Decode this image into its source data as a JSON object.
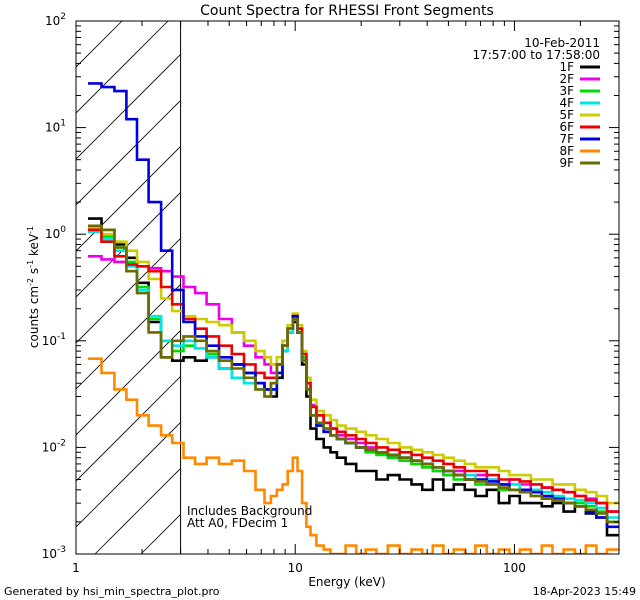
{
  "chart_data": {
    "type": "line",
    "title": "Count Spectra for RHESSI Front Segments",
    "xlabel": "Energy (keV)",
    "ylabel": "counts cm-2 s-1 keV-1",
    "xscale": "log",
    "yscale": "log",
    "xlim": [
      1,
      300
    ],
    "ylim": [
      0.001,
      100
    ],
    "x_ticks": [
      {
        "value": 1,
        "label": "1"
      },
      {
        "value": 10,
        "label": "10"
      },
      {
        "value": 100,
        "label": "100"
      }
    ],
    "y_ticks": [
      {
        "value": 0.001,
        "base": "10",
        "exp": "-3"
      },
      {
        "value": 0.01,
        "base": "10",
        "exp": "-2"
      },
      {
        "value": 0.1,
        "base": "10",
        "exp": "-1"
      },
      {
        "value": 1,
        "base": "10",
        "exp": "0"
      },
      {
        "value": 10,
        "base": "10",
        "exp": "1"
      },
      {
        "value": 100,
        "base": "10",
        "exp": "2"
      }
    ],
    "date": "10-Feb-2011",
    "time_range": "17:57:00 to 17:58:00",
    "hatched_region_max_keV": 3,
    "annotations": [
      "Includes Background",
      "Att A0, FDecim 1"
    ],
    "series": [
      {
        "name": "1F",
        "color": "#000000",
        "x": [
          1.22,
          1.4,
          1.6,
          1.8,
          2.0,
          2.3,
          2.6,
          2.9,
          3.3,
          3.7,
          4.2,
          4.8,
          5.5,
          6.2,
          7.0,
          7.5,
          8.0,
          8.5,
          9.0,
          9.5,
          10.0,
          10.5,
          11.0,
          11.5,
          12.0,
          13,
          14,
          15,
          16,
          18,
          20,
          22,
          25,
          28,
          32,
          36,
          40,
          45,
          50,
          56,
          63,
          70,
          80,
          90,
          100,
          112,
          126,
          141,
          158,
          178,
          200,
          224,
          250,
          280
        ],
        "y": [
          1.4,
          1.1,
          0.8,
          0.6,
          0.35,
          0.15,
          0.07,
          0.065,
          0.07,
          0.065,
          0.07,
          0.055,
          0.06,
          0.05,
          0.04,
          0.035,
          0.03,
          0.045,
          0.08,
          0.12,
          0.15,
          0.12,
          0.06,
          0.03,
          0.015,
          0.012,
          0.01,
          0.009,
          0.008,
          0.007,
          0.006,
          0.006,
          0.005,
          0.0055,
          0.005,
          0.0045,
          0.004,
          0.005,
          0.004,
          0.0045,
          0.004,
          0.0035,
          0.004,
          0.003,
          0.0035,
          0.003,
          0.003,
          0.0028,
          0.003,
          0.0025,
          0.0028,
          0.0024,
          0.0022,
          0.0015
        ]
      },
      {
        "name": "2F",
        "color": "#ee00ee",
        "x": [
          1.22,
          1.4,
          1.6,
          1.8,
          2.0,
          2.3,
          2.6,
          2.9,
          3.3,
          3.7,
          4.2,
          4.8,
          5.5,
          6.2,
          7.0,
          7.5,
          8.0,
          8.5,
          9.0,
          9.5,
          10.0,
          10.5,
          11.0,
          11.5,
          12.0,
          13,
          14,
          15,
          16,
          18,
          20,
          22,
          25,
          28,
          32,
          36,
          40,
          45,
          50,
          56,
          63,
          70,
          80,
          90,
          100,
          112,
          126,
          141,
          158,
          178,
          200,
          224,
          250,
          280
        ],
        "y": [
          0.62,
          0.58,
          0.55,
          0.52,
          0.5,
          0.48,
          0.45,
          0.4,
          0.32,
          0.28,
          0.22,
          0.16,
          0.12,
          0.09,
          0.07,
          0.06,
          0.05,
          0.06,
          0.09,
          0.12,
          0.16,
          0.12,
          0.07,
          0.04,
          0.025,
          0.02,
          0.017,
          0.015,
          0.013,
          0.012,
          0.011,
          0.01,
          0.009,
          0.008,
          0.0075,
          0.007,
          0.0065,
          0.006,
          0.0055,
          0.006,
          0.005,
          0.0055,
          0.005,
          0.0045,
          0.005,
          0.0045,
          0.004,
          0.0042,
          0.004,
          0.0038,
          0.0035,
          0.0033,
          0.003,
          0.0025
        ]
      },
      {
        "name": "3F",
        "color": "#00dd00",
        "x": [
          1.22,
          1.4,
          1.6,
          1.8,
          2.0,
          2.3,
          2.6,
          2.9,
          3.3,
          3.7,
          4.2,
          4.8,
          5.5,
          6.2,
          7.0,
          7.5,
          8.0,
          8.5,
          9.0,
          9.5,
          10.0,
          10.5,
          11.0,
          11.5,
          12.0,
          13,
          14,
          15,
          16,
          18,
          20,
          22,
          25,
          28,
          32,
          36,
          40,
          45,
          50,
          56,
          63,
          70,
          80,
          90,
          100,
          112,
          126,
          141,
          158,
          178,
          200,
          224,
          250,
          280
        ],
        "y": [
          1.1,
          0.95,
          0.75,
          0.55,
          0.32,
          0.16,
          0.1,
          0.08,
          0.09,
          0.085,
          0.075,
          0.065,
          0.06,
          0.05,
          0.04,
          0.035,
          0.04,
          0.06,
          0.09,
          0.13,
          0.17,
          0.13,
          0.07,
          0.035,
          0.02,
          0.017,
          0.015,
          0.013,
          0.012,
          0.011,
          0.01,
          0.009,
          0.0085,
          0.008,
          0.0075,
          0.007,
          0.0065,
          0.006,
          0.0055,
          0.005,
          0.005,
          0.0045,
          0.0045,
          0.004,
          0.004,
          0.0038,
          0.0035,
          0.0035,
          0.0032,
          0.003,
          0.003,
          0.0028,
          0.0025,
          0.002
        ]
      },
      {
        "name": "4F",
        "color": "#00e5e5",
        "x": [
          1.22,
          1.4,
          1.6,
          1.8,
          2.0,
          2.3,
          2.6,
          2.9,
          3.3,
          3.7,
          4.2,
          4.8,
          5.5,
          6.2,
          7.0,
          7.5,
          8.0,
          8.5,
          9.0,
          9.5,
          10.0,
          10.5,
          11.0,
          11.5,
          12.0,
          13,
          14,
          15,
          16,
          18,
          20,
          22,
          25,
          28,
          32,
          36,
          40,
          45,
          50,
          56,
          63,
          70,
          80,
          90,
          100,
          112,
          126,
          141,
          158,
          178,
          200,
          224,
          250,
          280
        ],
        "y": [
          1.05,
          0.9,
          0.7,
          0.5,
          0.3,
          0.17,
          0.1,
          0.09,
          0.1,
          0.085,
          0.07,
          0.055,
          0.045,
          0.04,
          0.035,
          0.03,
          0.035,
          0.05,
          0.08,
          0.12,
          0.16,
          0.12,
          0.065,
          0.035,
          0.02,
          0.016,
          0.014,
          0.013,
          0.012,
          0.011,
          0.01,
          0.0095,
          0.009,
          0.0085,
          0.008,
          0.0075,
          0.007,
          0.0065,
          0.006,
          0.0055,
          0.0055,
          0.005,
          0.005,
          0.0045,
          0.0045,
          0.004,
          0.004,
          0.0038,
          0.0035,
          0.0033,
          0.0032,
          0.003,
          0.0027,
          0.0022
        ]
      },
      {
        "name": "5F",
        "color": "#cccc00",
        "x": [
          1.22,
          1.4,
          1.6,
          1.8,
          2.0,
          2.3,
          2.6,
          2.9,
          3.3,
          3.7,
          4.2,
          4.8,
          5.5,
          6.2,
          7.0,
          7.5,
          8.0,
          8.5,
          9.0,
          9.5,
          10.0,
          10.5,
          11.0,
          11.5,
          12.0,
          13,
          14,
          15,
          16,
          18,
          20,
          22,
          25,
          28,
          32,
          36,
          40,
          45,
          50,
          56,
          63,
          70,
          80,
          90,
          100,
          112,
          126,
          141,
          158,
          178,
          200,
          224,
          250,
          280
        ],
        "y": [
          1.15,
          1.0,
          0.85,
          0.7,
          0.55,
          0.38,
          0.25,
          0.19,
          0.17,
          0.16,
          0.15,
          0.14,
          0.12,
          0.1,
          0.08,
          0.07,
          0.06,
          0.07,
          0.1,
          0.14,
          0.18,
          0.14,
          0.08,
          0.045,
          0.028,
          0.022,
          0.02,
          0.018,
          0.016,
          0.015,
          0.014,
          0.013,
          0.012,
          0.011,
          0.01,
          0.0095,
          0.009,
          0.0085,
          0.008,
          0.0075,
          0.007,
          0.0065,
          0.0065,
          0.006,
          0.0055,
          0.0055,
          0.005,
          0.005,
          0.0045,
          0.0045,
          0.004,
          0.0038,
          0.0035,
          0.003
        ]
      },
      {
        "name": "6F",
        "color": "#ee0000",
        "x": [
          1.22,
          1.4,
          1.6,
          1.8,
          2.0,
          2.3,
          2.6,
          2.9,
          3.3,
          3.7,
          4.2,
          4.8,
          5.5,
          6.2,
          7.0,
          7.5,
          8.0,
          8.5,
          9.0,
          9.5,
          10.0,
          10.5,
          11.0,
          11.5,
          12.0,
          13,
          14,
          15,
          16,
          18,
          20,
          22,
          25,
          28,
          32,
          36,
          40,
          45,
          50,
          56,
          63,
          70,
          80,
          90,
          100,
          112,
          126,
          141,
          158,
          178,
          200,
          224,
          250,
          280
        ],
        "y": [
          1.1,
          0.85,
          0.62,
          0.52,
          0.5,
          0.45,
          0.32,
          0.22,
          0.16,
          0.13,
          0.11,
          0.09,
          0.075,
          0.06,
          0.05,
          0.045,
          0.045,
          0.06,
          0.09,
          0.13,
          0.17,
          0.13,
          0.075,
          0.04,
          0.024,
          0.02,
          0.017,
          0.015,
          0.014,
          0.013,
          0.012,
          0.011,
          0.01,
          0.0095,
          0.009,
          0.0085,
          0.008,
          0.0075,
          0.007,
          0.0065,
          0.006,
          0.006,
          0.0055,
          0.005,
          0.005,
          0.0048,
          0.0045,
          0.0042,
          0.004,
          0.0038,
          0.0035,
          0.0032,
          0.003,
          0.0025
        ]
      },
      {
        "name": "7F",
        "color": "#0000dd",
        "x": [
          1.22,
          1.4,
          1.6,
          1.8,
          2.0,
          2.3,
          2.6,
          2.9,
          3.3,
          3.7,
          4.2,
          4.8,
          5.5,
          6.2,
          7.0,
          7.5,
          8.0,
          8.5,
          9.0,
          9.5,
          10.0,
          10.5,
          11.0,
          11.5,
          12.0,
          13,
          14,
          15,
          16,
          18,
          20,
          22,
          25,
          28,
          32,
          36,
          40,
          45,
          50,
          56,
          63,
          70,
          80,
          90,
          100,
          112,
          126,
          141,
          158,
          178,
          200,
          224,
          250,
          280
        ],
        "y": [
          26,
          24,
          22,
          12,
          5,
          2,
          0.7,
          0.3,
          0.15,
          0.11,
          0.09,
          0.07,
          0.06,
          0.05,
          0.04,
          0.035,
          0.035,
          0.05,
          0.09,
          0.13,
          0.17,
          0.12,
          0.065,
          0.035,
          0.02,
          0.016,
          0.014,
          0.013,
          0.012,
          0.011,
          0.01,
          0.0095,
          0.009,
          0.0085,
          0.008,
          0.0075,
          0.007,
          0.0065,
          0.006,
          0.0055,
          0.005,
          0.005,
          0.0048,
          0.0045,
          0.004,
          0.004,
          0.0038,
          0.0035,
          0.0033,
          0.003,
          0.0028,
          0.0025,
          0.0022,
          0.0018
        ]
      },
      {
        "name": "8F",
        "color": "#ff8800",
        "x": [
          1.22,
          1.4,
          1.6,
          1.8,
          2.0,
          2.3,
          2.6,
          2.9,
          3.3,
          3.7,
          4.2,
          4.8,
          5.5,
          6.2,
          7.0,
          7.5,
          8.0,
          8.5,
          9.0,
          9.5,
          10.0,
          10.5,
          11.0,
          11.5,
          12.0,
          13,
          14,
          15,
          16,
          18,
          20,
          22,
          25,
          28,
          32,
          36,
          40,
          45,
          50,
          56,
          63,
          70,
          80,
          90,
          100,
          112,
          126,
          141,
          158,
          178,
          200,
          224,
          250,
          280
        ],
        "y": [
          0.068,
          0.05,
          0.035,
          0.028,
          0.02,
          0.016,
          0.013,
          0.011,
          0.008,
          0.007,
          0.008,
          0.007,
          0.0075,
          0.006,
          0.004,
          0.003,
          0.0035,
          0.004,
          0.0045,
          0.006,
          0.008,
          0.006,
          0.003,
          0.0018,
          0.0015,
          0.0012,
          0.0011,
          0.001,
          0.001,
          0.0012,
          0.001,
          0.0011,
          0.001,
          0.0012,
          0.001,
          0.0011,
          0.001,
          0.0012,
          0.001,
          0.0011,
          0.001,
          0.0012,
          0.001,
          0.0011,
          0.001,
          0.0011,
          0.001,
          0.0012,
          0.001,
          0.0011,
          0.001,
          0.0012,
          0.001,
          0.0011
        ]
      },
      {
        "name": "9F",
        "color": "#6b6b00",
        "x": [
          1.22,
          1.4,
          1.6,
          1.8,
          2.0,
          2.3,
          2.6,
          2.9,
          3.3,
          3.7,
          4.2,
          4.8,
          5.5,
          6.2,
          7.0,
          7.5,
          8.0,
          8.5,
          9.0,
          9.5,
          10.0,
          10.5,
          11.0,
          11.5,
          12.0,
          13,
          14,
          15,
          16,
          18,
          20,
          22,
          25,
          28,
          32,
          36,
          40,
          45,
          50,
          56,
          63,
          70,
          80,
          90,
          100,
          112,
          126,
          141,
          158,
          178,
          200,
          224,
          250,
          280
        ],
        "y": [
          1.2,
          1.1,
          0.75,
          0.45,
          0.28,
          0.12,
          0.07,
          0.1,
          0.11,
          0.1,
          0.08,
          0.065,
          0.055,
          0.045,
          0.035,
          0.03,
          0.04,
          0.06,
          0.09,
          0.13,
          0.16,
          0.12,
          0.065,
          0.035,
          0.02,
          0.017,
          0.015,
          0.013,
          0.012,
          0.011,
          0.01,
          0.0095,
          0.009,
          0.0085,
          0.008,
          0.0075,
          0.007,
          0.0065,
          0.006,
          0.0055,
          0.005,
          0.0048,
          0.0045,
          0.0042,
          0.004,
          0.0038,
          0.0035,
          0.0033,
          0.0032,
          0.003,
          0.0028,
          0.0026,
          0.0024,
          0.002
        ]
      }
    ]
  },
  "footer": {
    "generated_by": "Generated by hsi_min_spectra_plot.pro",
    "timestamp": "18-Apr-2023 15:49"
  }
}
